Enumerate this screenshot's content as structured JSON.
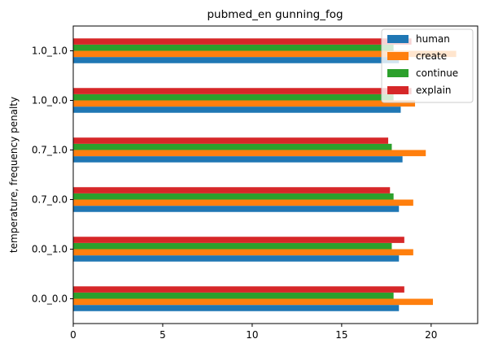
{
  "chart_data": {
    "type": "bar",
    "orientation": "horizontal",
    "title": "pubmed_en gunning_fog",
    "xlabel": "",
    "ylabel": "temperature, frequency penalty",
    "categories": [
      "0.0_0.0",
      "0.0_1.0",
      "0.7_0.0",
      "0.7_1.0",
      "1.0_0.0",
      "1.0_1.0"
    ],
    "xlim": [
      0,
      22.6
    ],
    "xticks": [
      0,
      5,
      10,
      15,
      20
    ],
    "grid": false,
    "legend_position": "top-right",
    "series": [
      {
        "name": "human",
        "color": "#1f77b4",
        "values": [
          18.2,
          18.2,
          18.2,
          18.4,
          18.3,
          18.2
        ]
      },
      {
        "name": "create",
        "color": "#ff7f0e",
        "values": [
          20.1,
          19.0,
          19.0,
          19.7,
          19.1,
          21.4
        ]
      },
      {
        "name": "continue",
        "color": "#2ca02c",
        "values": [
          17.9,
          17.8,
          17.9,
          17.8,
          17.9,
          17.9
        ]
      },
      {
        "name": "explain",
        "color": "#d62728",
        "values": [
          18.5,
          18.5,
          17.7,
          17.6,
          18.9,
          18.9
        ]
      }
    ]
  }
}
